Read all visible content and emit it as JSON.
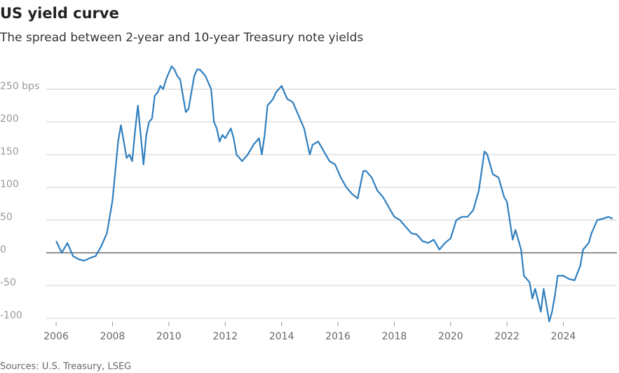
{
  "chart_data": {
    "type": "line",
    "title": "US yield curve",
    "subtitle": "The spread between 2-year and 10-year Treasury note yields",
    "source": "Sources: U.S. Treasury, LSEG",
    "x": [
      2006.0,
      2006.2,
      2006.4,
      2006.6,
      2006.8,
      2007.0,
      2007.2,
      2007.4,
      2007.6,
      2007.8,
      2008.0,
      2008.1,
      2008.2,
      2008.3,
      2008.4,
      2008.5,
      2008.6,
      2008.7,
      2008.8,
      2008.9,
      2009.0,
      2009.1,
      2009.2,
      2009.3,
      2009.4,
      2009.5,
      2009.6,
      2009.7,
      2009.8,
      2009.9,
      2010.0,
      2010.1,
      2010.2,
      2010.3,
      2010.4,
      2010.5,
      2010.6,
      2010.7,
      2010.8,
      2010.9,
      2011.0,
      2011.1,
      2011.2,
      2011.3,
      2011.4,
      2011.5,
      2011.6,
      2011.7,
      2011.8,
      2011.9,
      2012.0,
      2012.2,
      2012.3,
      2012.4,
      2012.6,
      2012.8,
      2013.0,
      2013.2,
      2013.3,
      2013.4,
      2013.5,
      2013.7,
      2013.8,
      2014.0,
      2014.2,
      2014.4,
      2014.6,
      2014.8,
      2015.0,
      2015.1,
      2015.3,
      2015.5,
      2015.7,
      2015.9,
      2016.1,
      2016.3,
      2016.5,
      2016.7,
      2016.9,
      2017.0,
      2017.2,
      2017.4,
      2017.6,
      2017.8,
      2018.0,
      2018.2,
      2018.4,
      2018.6,
      2018.8,
      2019.0,
      2019.2,
      2019.4,
      2019.6,
      2019.8,
      2020.0,
      2020.2,
      2020.4,
      2020.6,
      2020.8,
      2021.0,
      2021.2,
      2021.3,
      2021.5,
      2021.7,
      2021.9,
      2022.0,
      2022.2,
      2022.3,
      2022.5,
      2022.6,
      2022.8,
      2022.9,
      2023.0,
      2023.2,
      2023.3,
      2023.4,
      2023.5,
      2023.6,
      2023.7,
      2023.8,
      2023.9,
      2024.0,
      2024.2,
      2024.4,
      2024.6,
      2024.7,
      2024.9,
      2025.0,
      2025.2,
      2025.4,
      2025.6,
      2025.75
    ],
    "series": [
      {
        "color": "#2f7fbf",
        "values": [
          18,
          0,
          15,
          -5,
          -10,
          -12,
          -8,
          -5,
          10,
          30,
          80,
          125,
          170,
          195,
          170,
          145,
          150,
          140,
          185,
          225,
          180,
          135,
          180,
          200,
          205,
          240,
          245,
          255,
          250,
          265,
          275,
          285,
          280,
          270,
          265,
          240,
          215,
          220,
          245,
          270,
          280,
          280,
          275,
          270,
          260,
          250,
          200,
          190,
          170,
          180,
          175,
          190,
          175,
          150,
          140,
          150,
          165,
          175,
          150,
          180,
          225,
          235,
          245,
          255,
          235,
          230,
          210,
          190,
          150,
          165,
          170,
          155,
          140,
          135,
          115,
          100,
          90,
          83,
          125,
          125,
          115,
          95,
          85,
          70,
          55,
          50,
          40,
          30,
          28,
          18,
          15,
          20,
          5,
          15,
          22,
          50,
          55,
          55,
          65,
          95,
          155,
          150,
          120,
          115,
          85,
          78,
          20,
          35,
          5,
          -35,
          -45,
          -70,
          -55,
          -90,
          -55,
          -80,
          -105,
          -90,
          -65,
          -35,
          -35,
          -35,
          -40,
          -42,
          -20,
          5,
          15,
          30,
          50,
          52,
          55,
          52
        ]
      }
    ],
    "xlim": [
      2005.5,
      2025.9
    ],
    "xticks": [
      2006,
      2008,
      2010,
      2012,
      2014,
      2016,
      2018,
      2020,
      2022,
      2024
    ],
    "ylim": [
      -112,
      290
    ],
    "yticks": [
      -100,
      -50,
      0,
      50,
      100,
      150,
      {
        "value": 250,
        "label": "250 bps"
      },
      200
    ],
    "grid": true
  }
}
